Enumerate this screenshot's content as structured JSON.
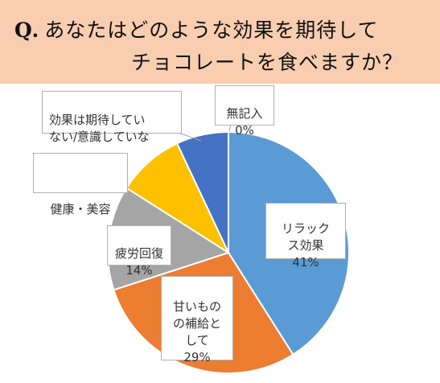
{
  "question": {
    "mark": "Q.",
    "line1": "あなたはどのような効果を期待して",
    "line2": "チョコレートを食べますか？"
  },
  "colors": {
    "header_bg": "#f8cdb0",
    "relax": "#5b9bd5",
    "sweets": "#ed7d31",
    "fatigue": "#a5a5a5",
    "health": "#ffc000",
    "none": "#4472c4",
    "no_answer": "#5b9bd5"
  },
  "chart_data": {
    "type": "pie",
    "title": "",
    "start": "12 o'clock, clockwise",
    "slices": [
      {
        "label": "リラックス効果",
        "value": 41,
        "pct_text": "41%"
      },
      {
        "label": "甘いものの補給として",
        "value": 29,
        "pct_text": "29%"
      },
      {
        "label": "疲労回復",
        "value": 14,
        "pct_text": "14%"
      },
      {
        "label": "健康・美容",
        "value": 9,
        "pct_text": ""
      },
      {
        "label": "効果は期待していない/意識していない",
        "value": 7,
        "pct_text": ""
      },
      {
        "label": "無記入",
        "value": 0,
        "pct_text": "0%"
      }
    ]
  },
  "labels": {
    "relax": {
      "text": "リラック\nス効果",
      "pct": "41%"
    },
    "sweets": {
      "text": "甘いもの\nの補給と\nして",
      "pct": "29%"
    },
    "fatigue": {
      "text": "疲労回復",
      "pct": "14%"
    },
    "health": {
      "text": "健康・美容"
    },
    "none": {
      "text": "効果は期待してい\nない/意識していな"
    },
    "no_answer": {
      "text": "無記入",
      "pct": "0%"
    }
  }
}
